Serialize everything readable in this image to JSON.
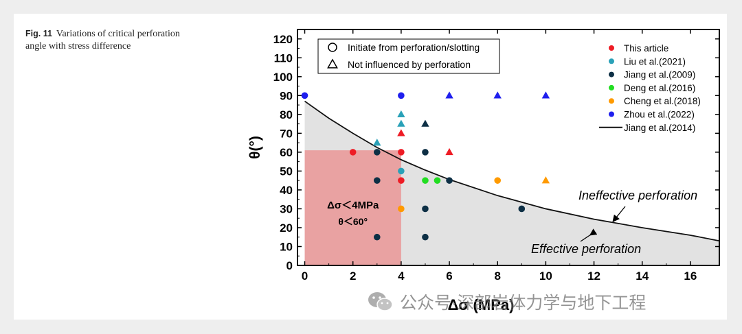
{
  "caption": {
    "fig_label": "Fig. 11",
    "text": "Variations of critical perforation angle with stress difference"
  },
  "watermark": {
    "text": "公众号·深部岩体力学与地下工程"
  },
  "colors": {
    "this_article": "#ee1c25",
    "liu": "#2aa1b8",
    "jiang2009": "#0d2f45",
    "deng": "#22dd22",
    "cheng": "#ff9a00",
    "zhou": "#1f1fee",
    "curve": "#111111",
    "effective_fill": "#e2e2e2",
    "red_region": "#e9a2a2"
  },
  "chart_data": {
    "type": "scatter",
    "xlabel": "Δσ (MPa)",
    "ylabel": "θ(°)",
    "xlim": [
      -0.3,
      17.2
    ],
    "ylim": [
      0,
      125
    ],
    "xticks": [
      "0",
      "2",
      "4",
      "6",
      "8",
      "10",
      "12",
      "14",
      "16"
    ],
    "yticks": [
      "0",
      "10",
      "20",
      "30",
      "40",
      "50",
      "60",
      "70",
      "80",
      "90",
      "100",
      "110",
      "120"
    ],
    "marker_legend": [
      {
        "shape": "circle",
        "label": "Initiate  from perforation/slotting"
      },
      {
        "shape": "triangle",
        "label": "Not influenced  by perforation"
      }
    ],
    "series": [
      {
        "name": "This article",
        "color_key": "this_article",
        "points": [
          {
            "x": 2,
            "y": 60,
            "m": "c"
          },
          {
            "x": 4,
            "y": 60,
            "m": "c"
          },
          {
            "x": 4,
            "y": 45,
            "m": "c"
          },
          {
            "x": 4,
            "y": 70,
            "m": "t"
          },
          {
            "x": 6,
            "y": 60,
            "m": "t"
          }
        ]
      },
      {
        "name": "Liu et al.(2021)",
        "color_key": "liu",
        "points": [
          {
            "x": 4,
            "y": 50,
            "m": "c"
          },
          {
            "x": 3,
            "y": 65,
            "m": "t"
          },
          {
            "x": 4,
            "y": 75,
            "m": "t"
          },
          {
            "x": 4,
            "y": 80,
            "m": "t"
          }
        ]
      },
      {
        "name": "Jiang et al.(2009)",
        "color_key": "jiang2009",
        "points": [
          {
            "x": 3,
            "y": 60,
            "m": "c"
          },
          {
            "x": 3,
            "y": 45,
            "m": "c"
          },
          {
            "x": 3,
            "y": 15,
            "m": "c"
          },
          {
            "x": 5,
            "y": 60,
            "m": "c"
          },
          {
            "x": 5,
            "y": 30,
            "m": "c"
          },
          {
            "x": 5,
            "y": 15,
            "m": "c"
          },
          {
            "x": 6,
            "y": 45,
            "m": "c"
          },
          {
            "x": 9,
            "y": 30,
            "m": "c"
          },
          {
            "x": 5,
            "y": 75,
            "m": "t"
          }
        ]
      },
      {
        "name": "Deng et al.(2016)",
        "color_key": "deng",
        "points": [
          {
            "x": 5,
            "y": 45,
            "m": "c"
          },
          {
            "x": 5.5,
            "y": 45,
            "m": "c"
          }
        ]
      },
      {
        "name": "Cheng et al.(2018)",
        "color_key": "cheng",
        "points": [
          {
            "x": 4,
            "y": 30,
            "m": "c"
          },
          {
            "x": 8,
            "y": 45,
            "m": "c"
          },
          {
            "x": 10,
            "y": 45,
            "m": "t"
          }
        ]
      },
      {
        "name": "Zhou et al.(2022)",
        "color_key": "zhou",
        "points": [
          {
            "x": 0,
            "y": 90,
            "m": "c"
          },
          {
            "x": 4,
            "y": 90,
            "m": "c"
          },
          {
            "x": 6,
            "y": 90,
            "m": "t"
          },
          {
            "x": 8,
            "y": 90,
            "m": "t"
          },
          {
            "x": 10,
            "y": 90,
            "m": "t"
          }
        ]
      }
    ],
    "curve": {
      "name": "Jiang et al.(2014)",
      "x": [
        0,
        1,
        2,
        3,
        4,
        5,
        6,
        8,
        10,
        12,
        14,
        16,
        17.2
      ],
      "y": [
        87,
        78,
        70,
        62.5,
        56,
        50.5,
        45.5,
        37,
        30,
        24.5,
        20,
        16,
        13
      ]
    },
    "region_box": {
      "x": [
        0,
        4
      ],
      "y": [
        0,
        61
      ]
    },
    "region_labels": [
      "Δσ＜4MPa",
      "θ＜60°"
    ],
    "annotations": [
      "Ineffective perforation",
      "Effective perforation"
    ]
  }
}
